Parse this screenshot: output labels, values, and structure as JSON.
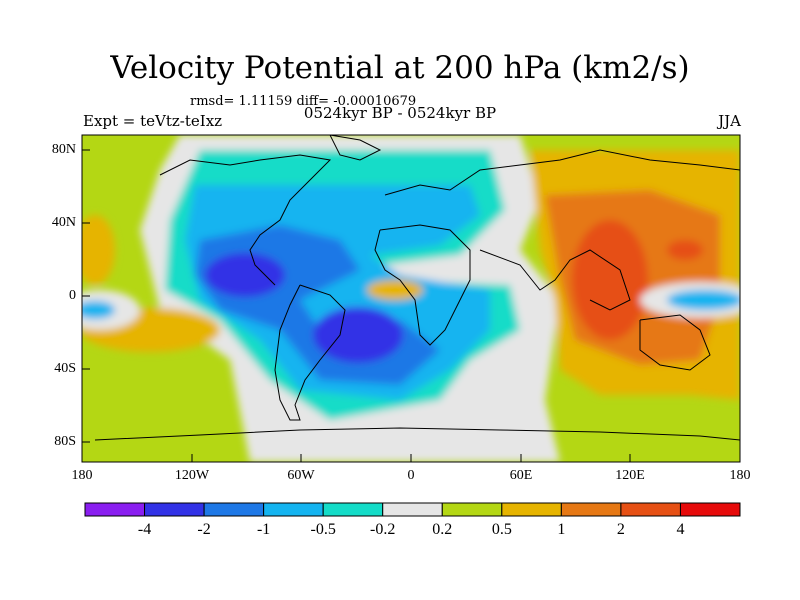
{
  "title": "Velocity Potential at 200 hPa (km2/s)",
  "stats": "rmsd= 1.11159 diff= -0.00010679",
  "experiment": "Expt = teVtz-teIxz",
  "period": "0524kyr BP - 0524kyr BP",
  "season": "JJA",
  "lat_labels": [
    "80N",
    "40N",
    "0",
    "40S",
    "80S"
  ],
  "lon_labels": [
    "180",
    "120W",
    "60W",
    "0",
    "60E",
    "120E",
    "180"
  ],
  "colorbar": {
    "labels": [
      "-4",
      "-2",
      "-1",
      "-0.5",
      "-0.2",
      "0.2",
      "0.5",
      "1",
      "2",
      "4"
    ],
    "colors": [
      "#8a1ef0",
      "#3232e6",
      "#1e78e6",
      "#14b4f0",
      "#14dcc8",
      "#e6e6e6",
      "#b4d714",
      "#e6b400",
      "#e67814",
      "#e65014",
      "#e60a0a"
    ]
  },
  "map_colors": {
    "ocean_neutral": "#e6e6e6",
    "pos_weak": "#b4d714",
    "pos_mid": "#e6b400",
    "pos_strong": "#e67814",
    "pos_max": "#e65014",
    "neg_weak": "#14dcc8",
    "neg_mid": "#14b4f0",
    "neg_strong": "#1e78e6",
    "neg_max": "#3232e6"
  }
}
